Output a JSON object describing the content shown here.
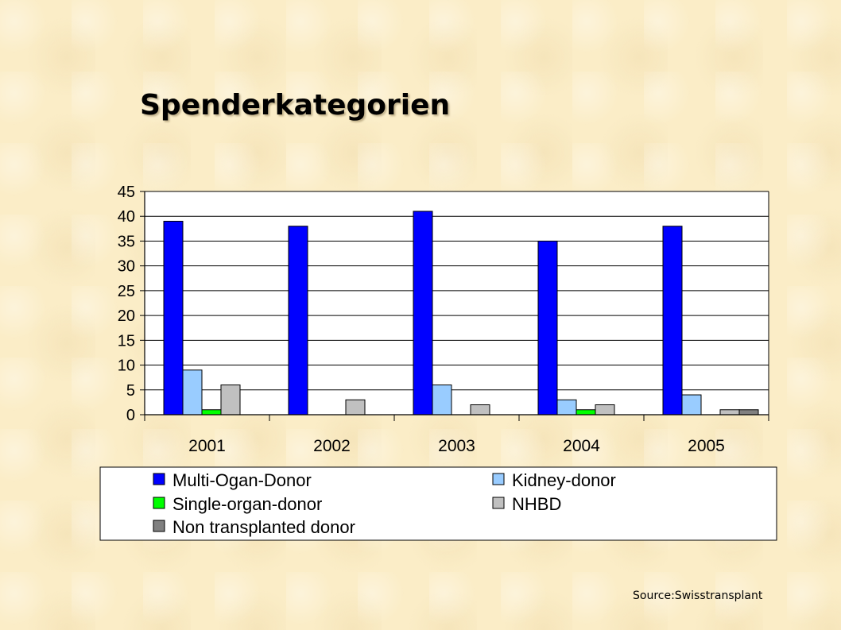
{
  "title": "Spenderkategorien",
  "source": "Source:Swisstransplant",
  "chart_data": {
    "type": "bar",
    "categories": [
      "2001",
      "2002",
      "2003",
      "2004",
      "2005"
    ],
    "ylim": [
      0,
      45
    ],
    "yticks": [
      0,
      5,
      10,
      15,
      20,
      25,
      30,
      35,
      40,
      45
    ],
    "grid": true,
    "legend_position": "bottom",
    "series": [
      {
        "name": "Multi-Ogan-Donor",
        "color": "#0000ff",
        "values": [
          39,
          38,
          41,
          35,
          38
        ]
      },
      {
        "name": "Kidney-donor",
        "color": "#99ccff",
        "values": [
          9,
          0,
          6,
          3,
          4
        ]
      },
      {
        "name": "Single-organ-donor",
        "color": "#00ff00",
        "values": [
          1,
          0,
          0,
          1,
          0
        ]
      },
      {
        "name": "NHBD",
        "color": "#c0c0c0",
        "values": [
          6,
          3,
          2,
          2,
          1
        ]
      },
      {
        "name": "Non transplanted donor",
        "color": "#808080",
        "values": [
          0,
          0,
          0,
          0,
          1
        ]
      }
    ]
  }
}
